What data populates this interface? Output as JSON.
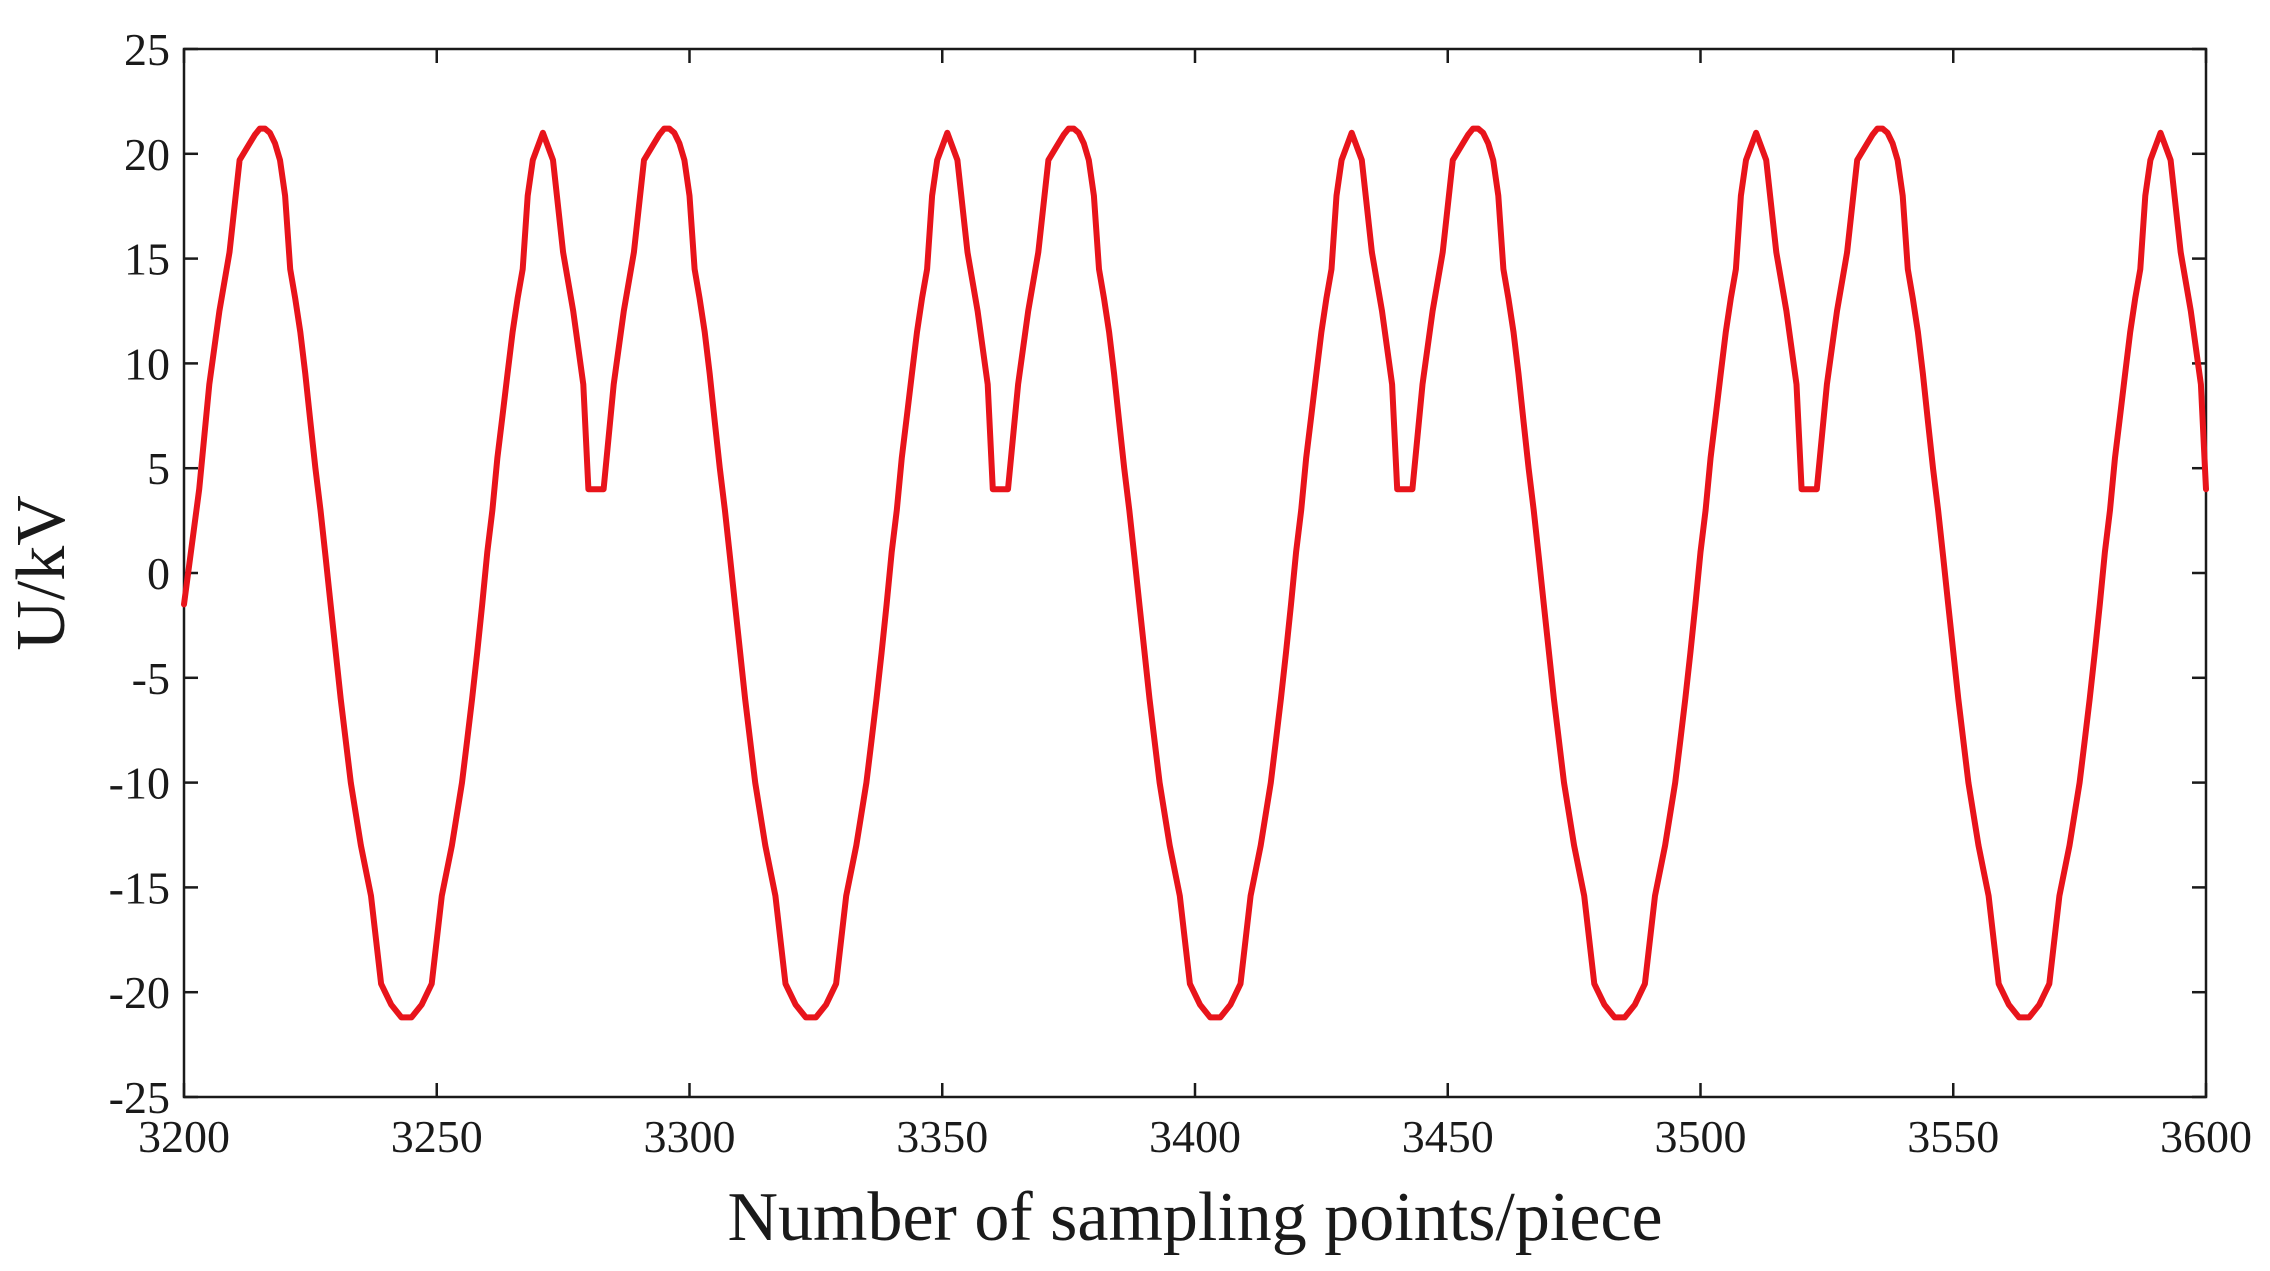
{
  "chart_data": {
    "type": "line",
    "title": "",
    "xlabel": "Number of sampling points/piece",
    "ylabel": "U/kV",
    "xlim": [
      3200,
      3600
    ],
    "ylim": [
      -25,
      25
    ],
    "x_ticks": [
      3200,
      3250,
      3300,
      3350,
      3400,
      3450,
      3500,
      3550,
      3600
    ],
    "x_tick_labels": [
      "3200",
      "3250",
      "3300",
      "3350",
      "3400",
      "3450",
      "3500",
      "3550",
      "3600"
    ],
    "y_ticks": [
      25,
      20,
      15,
      10,
      5,
      0,
      -5,
      -10,
      -15,
      -20,
      -25
    ],
    "y_tick_labels": [
      "25",
      "20",
      "15",
      "10",
      "5",
      "0",
      "-5",
      "-10",
      "-15",
      "-20",
      "-25"
    ],
    "grid": false,
    "legend": "none",
    "colors": {
      "series": "#e8141b",
      "axis": "#1a1a1a"
    },
    "series": [
      {
        "period": 80,
        "cycle_x": [
          0,
          3,
          5,
          7,
          9,
          11,
          13,
          14,
          15,
          16,
          17,
          18,
          19,
          20,
          21,
          22,
          23,
          24,
          25,
          26,
          27,
          28,
          29,
          31,
          33,
          35,
          37,
          39,
          41,
          43,
          45,
          47,
          49,
          51,
          53,
          55,
          56,
          57,
          58,
          59,
          60,
          61,
          62,
          63,
          64,
          65,
          66,
          67,
          68,
          69,
          71,
          73,
          75,
          77,
          79,
          80
        ],
        "cycle_y": [
          -1.5,
          4.0,
          9.0,
          12.5,
          15.3,
          19.7,
          20.5,
          20.9,
          21.2,
          21.2,
          21.0,
          20.5,
          19.7,
          18.0,
          14.5,
          13.1,
          11.5,
          9.5,
          7.2,
          5.0,
          3.0,
          0.8,
          -1.5,
          -6.0,
          -10.0,
          -13.0,
          -15.4,
          -19.6,
          -20.6,
          -21.2,
          -21.2,
          -20.6,
          -19.6,
          -15.4,
          -13.0,
          -10.0,
          -8.0,
          -6.0,
          -3.8,
          -1.5,
          1.0,
          3.0,
          5.5,
          7.5,
          9.5,
          11.5,
          13.1,
          14.5,
          18.0,
          19.7,
          21.0,
          19.7,
          15.3,
          12.5,
          9.0,
          4.0
        ],
        "x_start": 3200,
        "x_end": 3600
      }
    ]
  }
}
